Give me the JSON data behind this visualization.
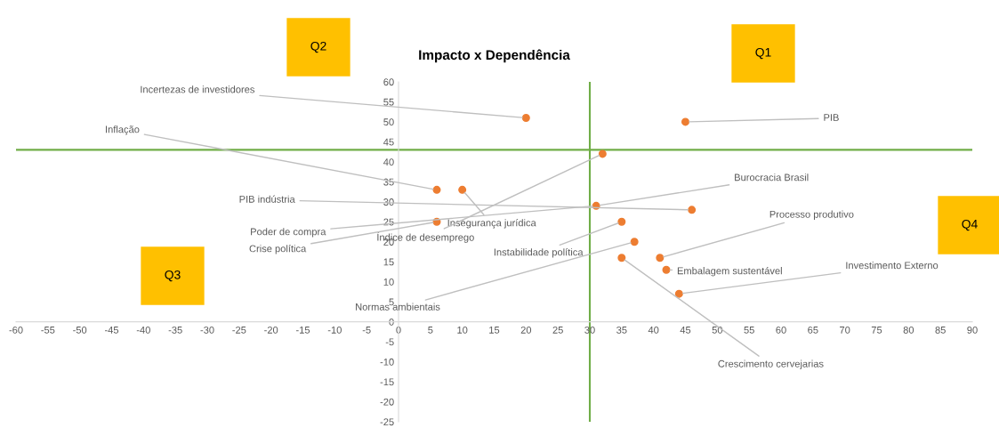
{
  "chart_data": {
    "type": "scatter",
    "title": "Impacto x Dependência",
    "x": [
      20,
      45,
      32,
      6,
      10,
      31,
      46,
      6,
      35,
      37,
      41,
      35,
      42,
      44
    ],
    "values": [
      51,
      50,
      42,
      33,
      33,
      29,
      28,
      25,
      25,
      20,
      16,
      16,
      13,
      7
    ],
    "color": "#ed7d31",
    "marker": "circle",
    "xlim": [
      -60,
      90
    ],
    "xticks": [
      -60,
      -55,
      -50,
      -45,
      -40,
      -35,
      -30,
      -25,
      -20,
      -15,
      -10,
      -5,
      0,
      5,
      10,
      15,
      20,
      25,
      30,
      35,
      40,
      45,
      50,
      55,
      60,
      65,
      70,
      75,
      80,
      85,
      90
    ],
    "ylim": [
      -25,
      60
    ],
    "yticks": [
      -25,
      -20,
      -15,
      -10,
      -5,
      0,
      5,
      10,
      15,
      20,
      25,
      30,
      35,
      40,
      45,
      50,
      55,
      60
    ],
    "grid": false,
    "ref_lines": [
      {
        "axis": "x",
        "value": 30,
        "color": "#70ad47"
      },
      {
        "axis": "y",
        "value": 43,
        "color": "#70ad47"
      }
    ],
    "annotations": [
      {
        "text": "Incertezas de investidores",
        "x": 20,
        "y": 51
      },
      {
        "text": "PIB",
        "x": 45,
        "y": 50
      },
      {
        "text": "Inflação",
        "x": 6,
        "y": 33
      },
      {
        "text": "Burocracia Brasil",
        "x": 31,
        "y": 29
      },
      {
        "text": "PIB indústria",
        "x": 46,
        "y": 28
      },
      {
        "text": "Processo produtivo",
        "x": 41,
        "y": 16
      },
      {
        "text": "Insegurança jurídica",
        "x": 10,
        "y": 33
      },
      {
        "text": "Poder de compra",
        "x": 31,
        "y": 29
      },
      {
        "text": "Índice de desemprego",
        "x": 32,
        "y": 42
      },
      {
        "text": "Crise política",
        "x": 6,
        "y": 25
      },
      {
        "text": "Instabilidade política",
        "x": 35,
        "y": 25
      },
      {
        "text": "Embalagem sustentável",
        "x": 42,
        "y": 13
      },
      {
        "text": "Investimento Externo",
        "x": 44,
        "y": 7
      },
      {
        "text": "Normas ambientais",
        "x": 37,
        "y": 20
      },
      {
        "text": "Crescimento cervejarias",
        "x": 35,
        "y": 16
      },
      "Q1",
      "Q2",
      "Q3",
      "Q4"
    ]
  }
}
